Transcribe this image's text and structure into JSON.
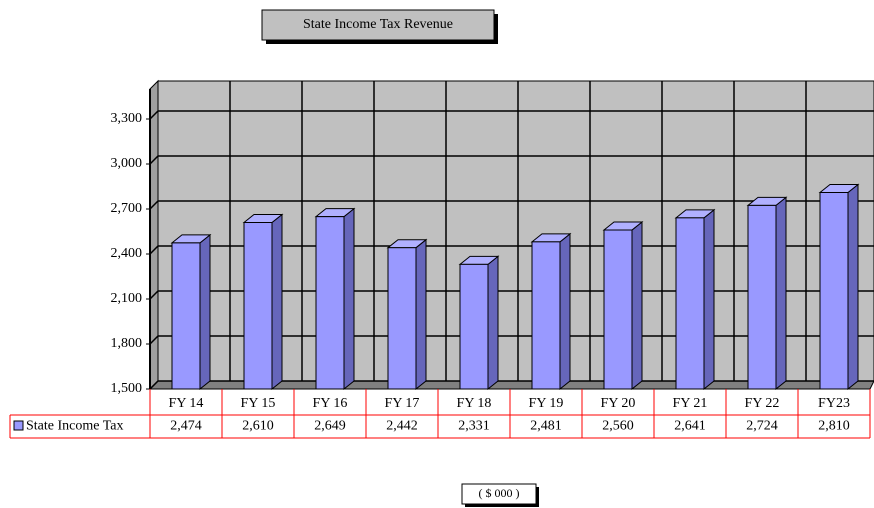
{
  "chart_data": {
    "type": "bar",
    "title": "State Income Tax Revenue",
    "annotation": "( $ 000 )",
    "categories": [
      "FY 14",
      "FY 15",
      "FY 16",
      "FY 17",
      "FY 18",
      "FY 19",
      "FY 20",
      "FY 21",
      "FY 22",
      "FY23"
    ],
    "series": [
      {
        "name": "State Income Tax",
        "color": "#9999ff",
        "values": [
          2474,
          2610,
          2649,
          2442,
          2331,
          2481,
          2560,
          2641,
          2724,
          2810
        ],
        "value_labels": [
          "2,474",
          "2,610",
          "2,649",
          "2,442",
          "2,331",
          "2,481",
          "2,560",
          "2,641",
          "2,724",
          "2,810"
        ]
      }
    ],
    "ylim": [
      1500,
      3500
    ],
    "yticks": [
      {
        "value": 1500,
        "label": "1,500"
      },
      {
        "value": 1800,
        "label": "1,800"
      },
      {
        "value": 2100,
        "label": "2,100"
      },
      {
        "value": 2400,
        "label": "2,400"
      },
      {
        "value": 2700,
        "label": "2,700"
      },
      {
        "value": 3000,
        "label": "3,000"
      },
      {
        "value": 3300,
        "label": "3,300"
      }
    ],
    "grid": true
  }
}
